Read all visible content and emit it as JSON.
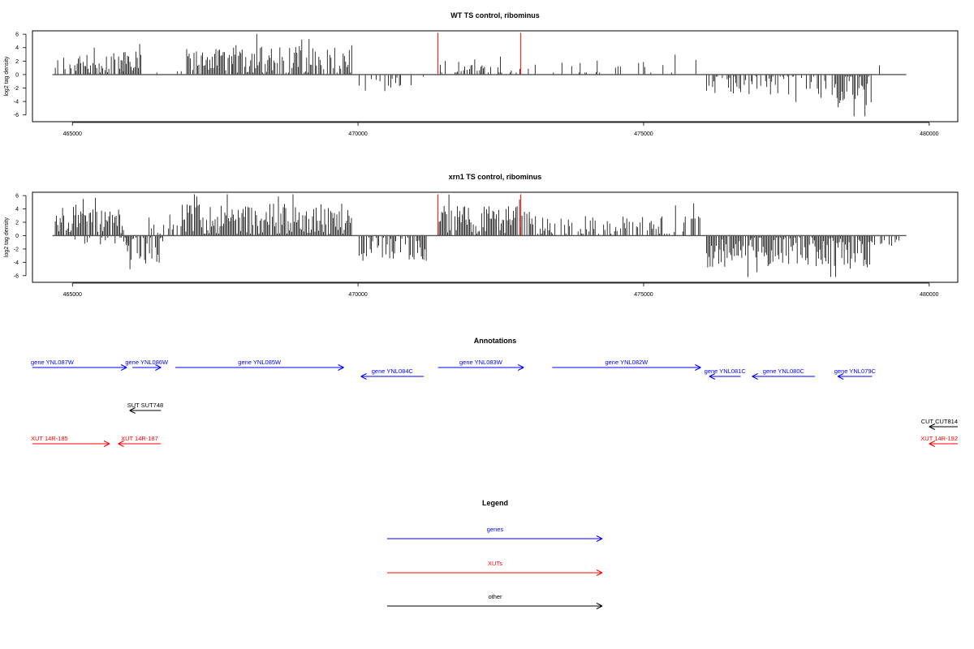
{
  "colors": {
    "genes": "#0000ff",
    "xuts": "#ff0000",
    "other": "#000000",
    "marker": "#ff0000",
    "bars": "#000000"
  },
  "chart_data": [
    {
      "type": "bar",
      "title": "WT TS control, ribominus",
      "ylabel": "log2 tag density",
      "xlim": [
        464300,
        480500
      ],
      "ylim": [
        -7,
        6.5
      ],
      "xticks": [
        465000,
        470000,
        475000,
        480000
      ],
      "yticks": [
        -6,
        -4,
        -2,
        0,
        2,
        4,
        6
      ],
      "baseline_range": [
        464650,
        479600
      ],
      "markers": [
        {
          "x": 471400,
          "y": 6.2
        },
        {
          "x": 472850,
          "y": 6.2
        }
      ],
      "segments": [
        {
          "x0": 464700,
          "x1": 465900,
          "sign": 1,
          "mean": 1.6,
          "amp": 1.5,
          "density": 0.7
        },
        {
          "x0": 465900,
          "x1": 466200,
          "sign": 1,
          "mean": 2.6,
          "amp": 2.0,
          "density": 0.9
        },
        {
          "x0": 466200,
          "x1": 467000,
          "sign": 1,
          "mean": 0.6,
          "amp": 0.6,
          "density": 0.08
        },
        {
          "x0": 467000,
          "x1": 467800,
          "sign": 1,
          "mean": 2.2,
          "amp": 1.6,
          "density": 0.85
        },
        {
          "x0": 467800,
          "x1": 469900,
          "sign": 1,
          "mean": 2.2,
          "amp": 2.2,
          "density": 0.8
        },
        {
          "x0": 470000,
          "x1": 470800,
          "sign": -1,
          "mean": 1.2,
          "amp": 1.3,
          "density": 0.4
        },
        {
          "x0": 470800,
          "x1": 471300,
          "sign": -1,
          "mean": 0.9,
          "amp": 0.8,
          "density": 0.2
        },
        {
          "x0": 471400,
          "x1": 472000,
          "sign": 1,
          "mean": 1.2,
          "amp": 1.0,
          "density": 0.5
        },
        {
          "x0": 472000,
          "x1": 473000,
          "sign": 1,
          "mean": 1.0,
          "amp": 1.0,
          "density": 0.25
        },
        {
          "x0": 473100,
          "x1": 476000,
          "sign": 1,
          "mean": 1.0,
          "amp": 1.4,
          "density": 0.18
        },
        {
          "x0": 476100,
          "x1": 476900,
          "sign": -1,
          "mean": 1.6,
          "amp": 1.4,
          "density": 0.55
        },
        {
          "x0": 476900,
          "x1": 477700,
          "sign": -1,
          "mean": 1.3,
          "amp": 1.8,
          "density": 0.5
        },
        {
          "x0": 477700,
          "x1": 478200,
          "sign": -1,
          "mean": 1.1,
          "amp": 1.2,
          "density": 0.35
        },
        {
          "x0": 478300,
          "x1": 479000,
          "sign": -1,
          "mean": 2.3,
          "amp": 2.3,
          "density": 0.9
        },
        {
          "x0": 479000,
          "x1": 479400,
          "sign": 1,
          "mean": 0.8,
          "amp": 0.6,
          "density": 0.1
        }
      ]
    },
    {
      "type": "bar",
      "title": "xrn1 TS control, ribominus",
      "ylabel": "log2 tag density",
      "xlim": [
        464300,
        480500
      ],
      "ylim": [
        -7,
        6.5
      ],
      "xticks": [
        465000,
        470000,
        475000,
        480000
      ],
      "yticks": [
        -6,
        -4,
        -2,
        0,
        2,
        4,
        6
      ],
      "baseline_range": [
        464650,
        479600
      ],
      "markers": [
        {
          "x": 471400,
          "y": 6.2
        },
        {
          "x": 472850,
          "y": 6.2
        }
      ],
      "segments": [
        {
          "x0": 464700,
          "x1": 465900,
          "sign": 1,
          "mean": 2.3,
          "amp": 2.0,
          "density": 0.9
        },
        {
          "x0": 465000,
          "x1": 466000,
          "sign": -1,
          "mean": 0.8,
          "amp": 0.8,
          "density": 0.25
        },
        {
          "x0": 465900,
          "x1": 466600,
          "sign": -1,
          "mean": 2.0,
          "amp": 2.2,
          "density": 0.7
        },
        {
          "x0": 466300,
          "x1": 466900,
          "sign": 1,
          "mean": 1.2,
          "amp": 1.0,
          "density": 0.4
        },
        {
          "x0": 466900,
          "x1": 469900,
          "sign": 1,
          "mean": 2.4,
          "amp": 2.4,
          "density": 0.95
        },
        {
          "x0": 470000,
          "x1": 471200,
          "sign": -1,
          "mean": 2.0,
          "amp": 2.0,
          "density": 0.75
        },
        {
          "x0": 471400,
          "x1": 473000,
          "sign": 1,
          "mean": 2.3,
          "amp": 2.2,
          "density": 0.95
        },
        {
          "x0": 473000,
          "x1": 476000,
          "sign": 1,
          "mean": 1.4,
          "amp": 1.6,
          "density": 0.6
        },
        {
          "x0": 476100,
          "x1": 476900,
          "sign": -1,
          "mean": 2.6,
          "amp": 2.2,
          "density": 0.9
        },
        {
          "x0": 476900,
          "x1": 478000,
          "sign": -1,
          "mean": 2.2,
          "amp": 2.4,
          "density": 0.9
        },
        {
          "x0": 478000,
          "x1": 479000,
          "sign": -1,
          "mean": 2.6,
          "amp": 2.4,
          "density": 0.95
        },
        {
          "x0": 479000,
          "x1": 479500,
          "sign": -1,
          "mean": 1.0,
          "amp": 0.6,
          "density": 0.3
        }
      ]
    }
  ],
  "annotations": {
    "title": "Annotations",
    "features": [
      {
        "label": "gene YNL087W",
        "kind": "genes",
        "x0": 464300,
        "x1": 465950,
        "row": 0,
        "dir": "right"
      },
      {
        "label": "gene YNL086W",
        "kind": "genes",
        "x0": 466050,
        "x1": 466550,
        "row": 0,
        "dir": "right"
      },
      {
        "label": "gene YNL085W",
        "kind": "genes",
        "x0": 466800,
        "x1": 469750,
        "row": 0,
        "dir": "right"
      },
      {
        "label": "gene YNL084C",
        "kind": "genes",
        "x0": 470050,
        "x1": 471150,
        "row": 1,
        "dir": "left"
      },
      {
        "label": "gene YNL083W",
        "kind": "genes",
        "x0": 471400,
        "x1": 472900,
        "row": 0,
        "dir": "right"
      },
      {
        "label": "gene YNL082W",
        "kind": "genes",
        "x0": 473400,
        "x1": 476000,
        "row": 0,
        "dir": "right"
      },
      {
        "label": "gene YNL081C",
        "kind": "genes",
        "x0": 476150,
        "x1": 476700,
        "row": 1,
        "dir": "left"
      },
      {
        "label": "gene YNL080C",
        "kind": "genes",
        "x0": 476900,
        "x1": 478000,
        "row": 1,
        "dir": "left"
      },
      {
        "label": "gene YNL079C",
        "kind": "genes",
        "x0": 478400,
        "x1": 479000,
        "row": 1,
        "dir": "left"
      },
      {
        "label": "SUT SUT748",
        "kind": "other",
        "x0": 466000,
        "x1": 466550,
        "row": 2,
        "dir": "left"
      },
      {
        "label": "CUT CUT814",
        "kind": "other",
        "x0": 480000,
        "x1": 480500,
        "row": 3,
        "dir": "left"
      },
      {
        "label": "XUT 14R-185",
        "kind": "xuts",
        "x0": 464300,
        "x1": 465650,
        "row": 4,
        "dir": "right"
      },
      {
        "label": "XUT 14R-187",
        "kind": "xuts",
        "x0": 465800,
        "x1": 466550,
        "row": 4,
        "dir": "left"
      },
      {
        "label": "XUT 14R-192",
        "kind": "xuts",
        "x0": 480000,
        "x1": 480500,
        "row": 4,
        "dir": "left"
      }
    ]
  },
  "legend": {
    "title": "Legend",
    "items": [
      {
        "label": "genes",
        "kind": "genes"
      },
      {
        "label": "XUTs",
        "kind": "xuts"
      },
      {
        "label": "other",
        "kind": "other"
      }
    ]
  }
}
